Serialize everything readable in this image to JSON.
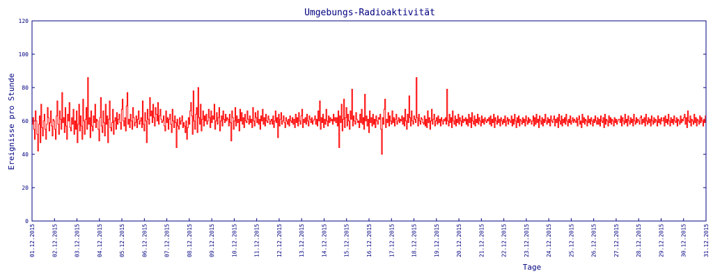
{
  "chart_data": {
    "type": "line",
    "title": "Umgebungs-Radioaktivität",
    "xlabel": "Tage",
    "ylabel": "Ereignisse pro Stunde",
    "ylim": [
      0,
      120
    ],
    "yticks": [
      0,
      20,
      40,
      60,
      80,
      100,
      120
    ],
    "x_categories": [
      "01.12.2015",
      "02.12.2015",
      "03.12.2015",
      "04.12.2015",
      "05.12.2015",
      "06.12.2015",
      "07.12.2015",
      "08.12.2015",
      "09.12.2015",
      "10.12.2015",
      "11.12.2015",
      "12.12.2015",
      "13.12.2015",
      "14.12.2015",
      "15.12.2015",
      "16.12.2015",
      "17.12.2015",
      "18.12.2015",
      "19.12.2015",
      "20.12.2015",
      "21.12.2015",
      "22.12.2015",
      "23.12.2015",
      "24.12.2015",
      "25.12.2015",
      "26.12.2015",
      "27.12.2015",
      "28.12.2015",
      "29.12.2015",
      "30.12.2015",
      "31.12.2015"
    ],
    "grid": false,
    "legend": "none",
    "line_color": "#ff0000",
    "axis_color": "#000080",
    "series": [
      {
        "values_per_day": [
          [
            58,
            62,
            55,
            49,
            66,
            60,
            52,
            42,
            58,
            63,
            47,
            70,
            56,
            51,
            60,
            64,
            55,
            49,
            58,
            68,
            62,
            54,
            59,
            66,
            57,
            51,
            61
          ],
          [
            60,
            55,
            49,
            63,
            72,
            58,
            52,
            66,
            61,
            55,
            77,
            59,
            62,
            53,
            68,
            57,
            49,
            64,
            60,
            71,
            56,
            54,
            62,
            58,
            67,
            52,
            60
          ],
          [
            55,
            66,
            47,
            58,
            70,
            54,
            63,
            57,
            49,
            73,
            60,
            52,
            61,
            68,
            55,
            86,
            58,
            62,
            50,
            66,
            57,
            54,
            63,
            59,
            70,
            56,
            61
          ],
          [
            60,
            55,
            48,
            62,
            74,
            57,
            53,
            66,
            59,
            51,
            70,
            58,
            63,
            47,
            61,
            72,
            56,
            54,
            59,
            67,
            52,
            60,
            62,
            55,
            65,
            58,
            61
          ],
          [
            64,
            59,
            55,
            67,
            73,
            60,
            57,
            62,
            54,
            69,
            77,
            58,
            61,
            56,
            64,
            60,
            55,
            68,
            62,
            57,
            59,
            63,
            56,
            61,
            66,
            58,
            60
          ],
          [
            62,
            56,
            72,
            58,
            54,
            65,
            60,
            47,
            67,
            61,
            58,
            74,
            63,
            66,
            59,
            70,
            62,
            57,
            68,
            64,
            60,
            71,
            58,
            63,
            67,
            61,
            59
          ],
          [
            60,
            63,
            57,
            54,
            66,
            59,
            62,
            55,
            61,
            64,
            58,
            53,
            67,
            60,
            56,
            63,
            59,
            44,
            61,
            57,
            55,
            62,
            58,
            60,
            63,
            56,
            59
          ],
          [
            57,
            53,
            60,
            49,
            56,
            62,
            58,
            66,
            71,
            63,
            52,
            78,
            60,
            55,
            64,
            68,
            53,
            80,
            62,
            58,
            70,
            54,
            61,
            66,
            57,
            63,
            60
          ],
          [
            64,
            58,
            60,
            67,
            62,
            56,
            66,
            59,
            63,
            61,
            70,
            55,
            60,
            65,
            58,
            62,
            68,
            54,
            60,
            63,
            57,
            66,
            61,
            59,
            64,
            60,
            62
          ],
          [
            61,
            57,
            64,
            59,
            48,
            66,
            62,
            55,
            60,
            68,
            57,
            63,
            59,
            61,
            54,
            67,
            60,
            65,
            58,
            62,
            56,
            64,
            60,
            59,
            66,
            61,
            58
          ],
          [
            63,
            59,
            61,
            56,
            68,
            60,
            57,
            65,
            62,
            59,
            66,
            58,
            61,
            55,
            63,
            60,
            67,
            58,
            62,
            57,
            64,
            60,
            59,
            63,
            61,
            58,
            60
          ],
          [
            61,
            58,
            63,
            56,
            60,
            66,
            59,
            62,
            50,
            64,
            57,
            61,
            65,
            58,
            60,
            63,
            59,
            56,
            62,
            60,
            58,
            61,
            57,
            63,
            60,
            59,
            62
          ],
          [
            58,
            61,
            56,
            64,
            59,
            62,
            57,
            65,
            60,
            58,
            63,
            67,
            56,
            61,
            59,
            62,
            58,
            64,
            60,
            57,
            63,
            61,
            59,
            62,
            58,
            60,
            61
          ],
          [
            63,
            58,
            61,
            57,
            66,
            60,
            72,
            55,
            62,
            59,
            64,
            56,
            61,
            58,
            67,
            60,
            57,
            63,
            59,
            62,
            60,
            61,
            58,
            64,
            60,
            62,
            59
          ],
          [
            62,
            57,
            66,
            44,
            63,
            59,
            70,
            54,
            61,
            73,
            56,
            62,
            68,
            57,
            64,
            60,
            55,
            66,
            61,
            79,
            57,
            63,
            60,
            58,
            65,
            61,
            59
          ],
          [
            60,
            56,
            64,
            59,
            67,
            58,
            62,
            55,
            76,
            60,
            63,
            57,
            61,
            53,
            66,
            59,
            62,
            57,
            64,
            58,
            61,
            56,
            63,
            60,
            58,
            62,
            61
          ],
          [
            64,
            55,
            40,
            62,
            58,
            67,
            73,
            56,
            61,
            59,
            65,
            57,
            63,
            60,
            58,
            66,
            59,
            62,
            57,
            61,
            64,
            58,
            60,
            62,
            59,
            61,
            60
          ],
          [
            63,
            58,
            62,
            57,
            67,
            60,
            55,
            64,
            59,
            75,
            62,
            57,
            66,
            60,
            58,
            63,
            61,
            59,
            86,
            62,
            57,
            64,
            60,
            58,
            62,
            61,
            59
          ],
          [
            58,
            63,
            57,
            61,
            56,
            66,
            59,
            62,
            55,
            60,
            67,
            58,
            61,
            64,
            57,
            60,
            62,
            58,
            63,
            59,
            61,
            57,
            62,
            60,
            58,
            61,
            60
          ],
          [
            62,
            58,
            79,
            60,
            57,
            64,
            59,
            62,
            56,
            66,
            60,
            58,
            63,
            57,
            61,
            59,
            64,
            58,
            62,
            60,
            57,
            63,
            59,
            61,
            60,
            62,
            58
          ],
          [
            61,
            57,
            64,
            59,
            62,
            56,
            65,
            60,
            58,
            63,
            57,
            61,
            59,
            64,
            58,
            62,
            60,
            57,
            63,
            59,
            61,
            58,
            62,
            60,
            59,
            61,
            60
          ],
          [
            62,
            58,
            63,
            57,
            61,
            59,
            64,
            56,
            62,
            60,
            58,
            63,
            59,
            61,
            57,
            62,
            60,
            58,
            61,
            59,
            63,
            57,
            60,
            62,
            58,
            61,
            60
          ],
          [
            59,
            63,
            57,
            61,
            58,
            64,
            60,
            56,
            62,
            59,
            63,
            57,
            61,
            60,
            58,
            62,
            59,
            61,
            57,
            63,
            60,
            58,
            62,
            59,
            61,
            60,
            58
          ],
          [
            60,
            63,
            57,
            62,
            58,
            64,
            59,
            61,
            56,
            63,
            60,
            58,
            62,
            57,
            61,
            59,
            64,
            60,
            58,
            62,
            59,
            61,
            57,
            63,
            60,
            59,
            61
          ],
          [
            63,
            57,
            61,
            59,
            62,
            56,
            64,
            60,
            58,
            63,
            57,
            61,
            59,
            62,
            58,
            64,
            60,
            57,
            61,
            59,
            63,
            58,
            60,
            62,
            59,
            61,
            60
          ],
          [
            59,
            62,
            57,
            61,
            63,
            58,
            60,
            56,
            64,
            59,
            62,
            58,
            61,
            60,
            57,
            63,
            59,
            61,
            58,
            62,
            60,
            57,
            61,
            59,
            63,
            60,
            58
          ],
          [
            62,
            58,
            61,
            57,
            63,
            60,
            59,
            62,
            56,
            64,
            58,
            61,
            60,
            57,
            63,
            59,
            62,
            58,
            61,
            60,
            57,
            62,
            59,
            61,
            58,
            60,
            61
          ],
          [
            61,
            59,
            63,
            57,
            62,
            60,
            58,
            64,
            59,
            61,
            57,
            63,
            60,
            58,
            62,
            59,
            61,
            57,
            64,
            60,
            58,
            62,
            59,
            61,
            60,
            58,
            62
          ],
          [
            63,
            58,
            61,
            59,
            62,
            57,
            64,
            60,
            58,
            62,
            59,
            61,
            57,
            63,
            60,
            58,
            62,
            59,
            61,
            60,
            57,
            63,
            59,
            61,
            58,
            62,
            60
          ],
          [
            60,
            62,
            57,
            63,
            59,
            61,
            58,
            64,
            60,
            57,
            62,
            59,
            61,
            58,
            63,
            60,
            59,
            62,
            57,
            61,
            60,
            58,
            63,
            59,
            61,
            60,
            62
          ],
          [
            64,
            58,
            62,
            56,
            66,
            60,
            59,
            63,
            57,
            61,
            60,
            58,
            64,
            59,
            62,
            57,
            61,
            60,
            58,
            63,
            59,
            62,
            60,
            57,
            61,
            59,
            63
          ]
        ]
      }
    ]
  }
}
